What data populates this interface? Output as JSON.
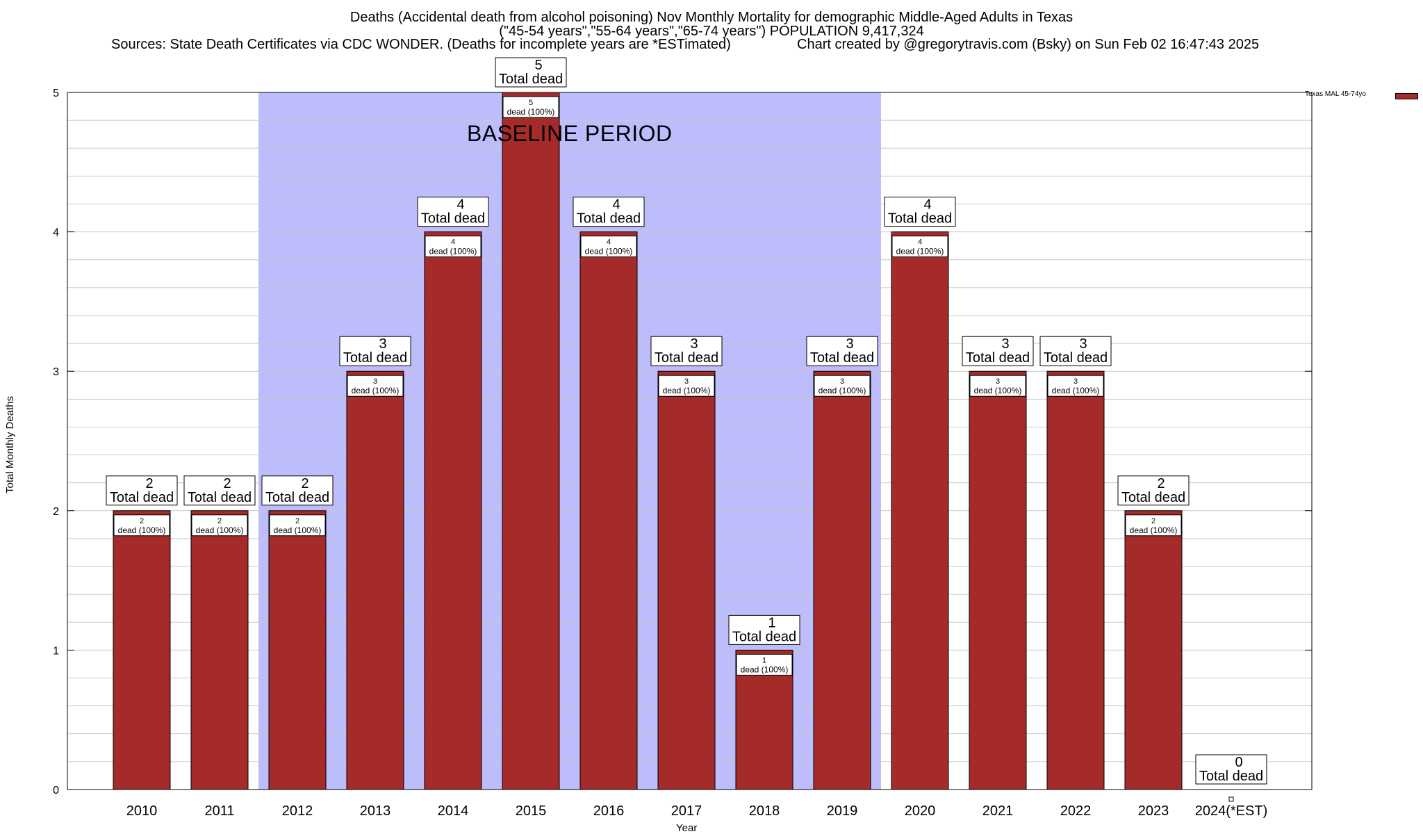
{
  "header": {
    "title_line1": "Deaths (Accidental death from alcohol poisoning) Nov Monthly Mortality for demographic Middle-Aged Adults in Texas",
    "title_line2": "(\"45-54 years\",\"55-64 years\",\"65-74 years\") POPULATION 9,417,324",
    "sources": "Sources: State Death Certificates via CDC WONDER. (Deaths for incomplete years are *ESTimated)",
    "credit": "Chart created by @gregorytravis.com (Bsky) on Sun Feb 02 16:47:43 2025"
  },
  "legend": {
    "label": "Texas MAL 45-74yo",
    "color": "#a52a2a"
  },
  "baseline": {
    "label": "BASELINE PERIOD",
    "from": "2012",
    "to": "2019",
    "color": "#bdbdfb"
  },
  "chart_data": {
    "type": "bar",
    "title": "Deaths (Accidental death from alcohol poisoning) Nov Monthly Mortality for demographic Middle-Aged Adults in Texas",
    "xlabel": "Year",
    "ylabel": "Total Monthly Deaths",
    "ylim": [
      0,
      5
    ],
    "yticks": [
      0,
      1,
      2,
      3,
      4,
      5
    ],
    "grid": true,
    "legend_position": "top-right",
    "categories": [
      "2010",
      "2011",
      "2012",
      "2013",
      "2014",
      "2015",
      "2016",
      "2017",
      "2018",
      "2019",
      "2020",
      "2021",
      "2022",
      "2023",
      "2024(*EST)"
    ],
    "series": [
      {
        "name": "Texas MAL 45-74yo",
        "color": "#a52a2a",
        "values": [
          2,
          2,
          2,
          3,
          4,
          5,
          4,
          3,
          1,
          3,
          4,
          3,
          3,
          2,
          0
        ]
      }
    ],
    "total_label_suffix": "Total dead",
    "inner_label_suffix": "dead (100%)"
  }
}
